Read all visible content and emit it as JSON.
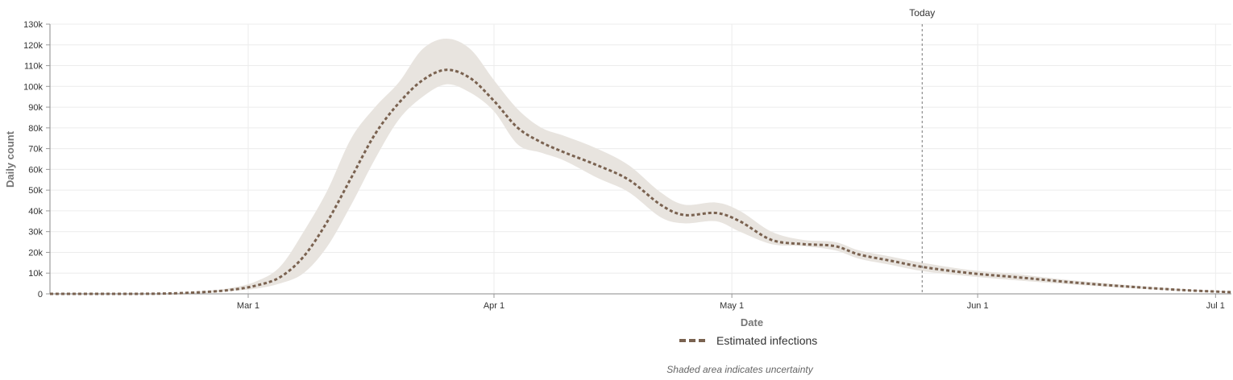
{
  "chart_data": {
    "type": "line",
    "xlabel": "Date",
    "ylabel": "Daily count",
    "x_range": [
      "2020-02-05",
      "2020-07-03"
    ],
    "ylim": [
      0,
      130000
    ],
    "y_ticks": [
      0,
      10000,
      20000,
      30000,
      40000,
      50000,
      60000,
      70000,
      80000,
      90000,
      100000,
      110000,
      120000,
      130000
    ],
    "y_tick_labels": [
      "0",
      "10k",
      "20k",
      "30k",
      "40k",
      "50k",
      "60k",
      "70k",
      "80k",
      "90k",
      "100k",
      "110k",
      "120k",
      "130k"
    ],
    "x_ticks": [
      "2020-03-01",
      "2020-04-01",
      "2020-05-01",
      "2020-06-01",
      "2020-07-01"
    ],
    "x_tick_labels": [
      "Mar 1",
      "Apr 1",
      "May 1",
      "Jun 1",
      "Jul 1"
    ],
    "grid": true,
    "today": {
      "label": "Today",
      "date": "2020-05-25"
    },
    "series": [
      {
        "name": "Estimated infections",
        "color": "#7a6250",
        "style": "dashed",
        "uncertainty_band_color": "#e8e4df",
        "points": [
          {
            "date": "2020-02-05",
            "y": 0,
            "lower": 0,
            "upper": 0
          },
          {
            "date": "2020-02-15",
            "y": 0,
            "lower": 0,
            "upper": 0
          },
          {
            "date": "2020-02-20",
            "y": 200,
            "lower": 100,
            "upper": 300
          },
          {
            "date": "2020-02-25",
            "y": 1000,
            "lower": 500,
            "upper": 1500
          },
          {
            "date": "2020-02-28",
            "y": 2000,
            "lower": 1500,
            "upper": 3000
          },
          {
            "date": "2020-03-02",
            "y": 4000,
            "lower": 2500,
            "upper": 6000
          },
          {
            "date": "2020-03-05",
            "y": 8000,
            "lower": 5000,
            "upper": 13000
          },
          {
            "date": "2020-03-08",
            "y": 18000,
            "lower": 10000,
            "upper": 30000
          },
          {
            "date": "2020-03-11",
            "y": 35000,
            "lower": 23000,
            "upper": 50000
          },
          {
            "date": "2020-03-14",
            "y": 56000,
            "lower": 43000,
            "upper": 75000
          },
          {
            "date": "2020-03-17",
            "y": 77000,
            "lower": 65000,
            "upper": 90000
          },
          {
            "date": "2020-03-20",
            "y": 92000,
            "lower": 84000,
            "upper": 102000
          },
          {
            "date": "2020-03-23",
            "y": 103000,
            "lower": 95000,
            "upper": 118000
          },
          {
            "date": "2020-03-26",
            "y": 108000,
            "lower": 101000,
            "upper": 123000
          },
          {
            "date": "2020-03-29",
            "y": 104000,
            "lower": 97000,
            "upper": 118000
          },
          {
            "date": "2020-04-01",
            "y": 93000,
            "lower": 88000,
            "upper": 103000
          },
          {
            "date": "2020-04-04",
            "y": 80000,
            "lower": 72000,
            "upper": 89000
          },
          {
            "date": "2020-04-07",
            "y": 73000,
            "lower": 68000,
            "upper": 80000
          },
          {
            "date": "2020-04-10",
            "y": 68000,
            "lower": 64000,
            "upper": 76000
          },
          {
            "date": "2020-04-14",
            "y": 62000,
            "lower": 56000,
            "upper": 70000
          },
          {
            "date": "2020-04-18",
            "y": 55000,
            "lower": 49000,
            "upper": 62000
          },
          {
            "date": "2020-04-22",
            "y": 43000,
            "lower": 37000,
            "upper": 49000
          },
          {
            "date": "2020-04-25",
            "y": 38000,
            "lower": 34000,
            "upper": 43000
          },
          {
            "date": "2020-04-29",
            "y": 39000,
            "lower": 35000,
            "upper": 44000
          },
          {
            "date": "2020-05-02",
            "y": 35000,
            "lower": 30000,
            "upper": 40000
          },
          {
            "date": "2020-05-06",
            "y": 26000,
            "lower": 24000,
            "upper": 30000
          },
          {
            "date": "2020-05-10",
            "y": 24000,
            "lower": 23000,
            "upper": 26000
          },
          {
            "date": "2020-05-14",
            "y": 23000,
            "lower": 21000,
            "upper": 25000
          },
          {
            "date": "2020-05-17",
            "y": 19000,
            "lower": 17000,
            "upper": 21000
          },
          {
            "date": "2020-05-21",
            "y": 16000,
            "lower": 14000,
            "upper": 18000
          },
          {
            "date": "2020-05-25",
            "y": 13000,
            "lower": 11000,
            "upper": 15000
          },
          {
            "date": "2020-05-31",
            "y": 10000,
            "lower": 8500,
            "upper": 11500
          },
          {
            "date": "2020-06-06",
            "y": 8000,
            "lower": 6500,
            "upper": 9500
          },
          {
            "date": "2020-06-13",
            "y": 5500,
            "lower": 4500,
            "upper": 6500
          },
          {
            "date": "2020-06-20",
            "y": 3500,
            "lower": 2800,
            "upper": 4200
          },
          {
            "date": "2020-06-27",
            "y": 1800,
            "lower": 1400,
            "upper": 2200
          },
          {
            "date": "2020-07-03",
            "y": 800,
            "lower": 600,
            "upper": 1000
          }
        ]
      }
    ]
  },
  "legend": {
    "swatch_color": "#7a6250",
    "entries": [
      {
        "label": "Estimated infections"
      }
    ]
  },
  "footnote": "Shaded area indicates uncertainty"
}
